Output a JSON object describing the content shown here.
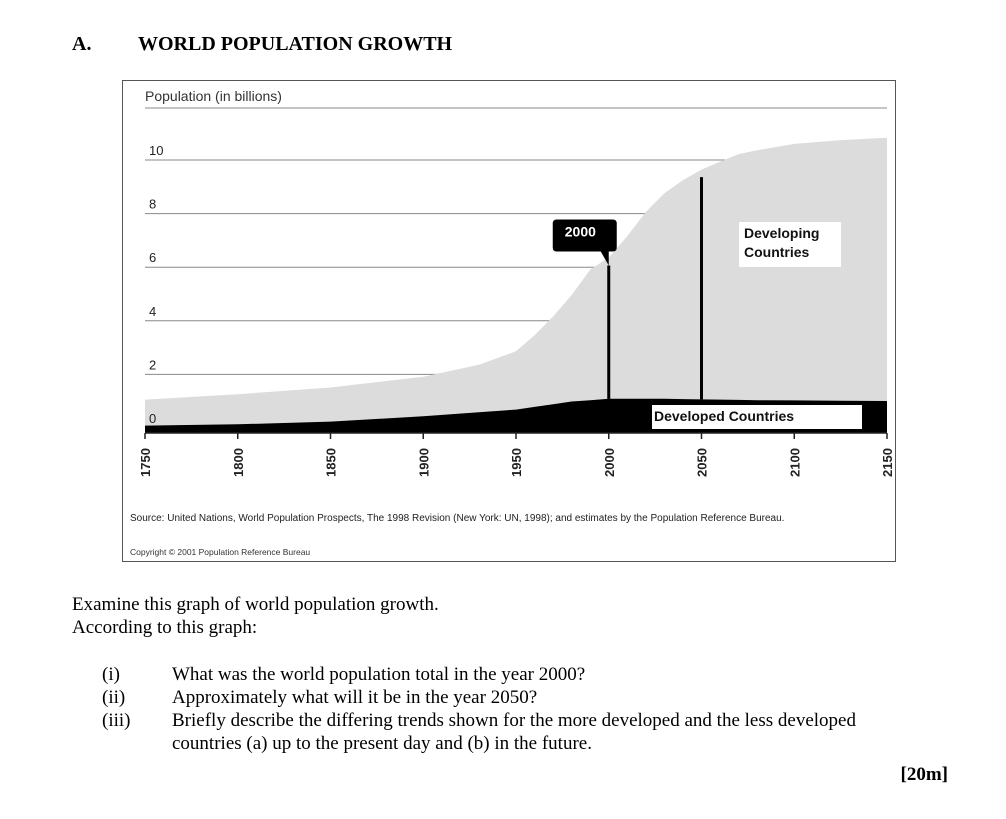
{
  "heading": {
    "letter": "A.",
    "title": "WORLD POPULATION GROWTH"
  },
  "chart_data": {
    "type": "area",
    "ylabel": "Population (in billions)",
    "ylim": [
      0,
      10
    ],
    "yticks": [
      0,
      2,
      4,
      6,
      8,
      10
    ],
    "xlim": [
      1750,
      2150
    ],
    "xticks": [
      1750,
      1800,
      1850,
      1900,
      1950,
      2000,
      2050,
      2100,
      2150
    ],
    "grid": true,
    "x": [
      1750,
      1800,
      1850,
      1900,
      1930,
      1950,
      1960,
      1970,
      1980,
      1990,
      2000,
      2010,
      2020,
      2030,
      2040,
      2050,
      2060,
      2070,
      2080,
      2100,
      2125,
      2150
    ],
    "series": [
      {
        "name": "Developed Countries",
        "values": [
          0.2,
          0.25,
          0.35,
          0.55,
          0.7,
          0.8,
          0.9,
          1.0,
          1.1,
          1.15,
          1.2,
          1.2,
          1.2,
          1.2,
          1.19,
          1.18,
          1.17,
          1.16,
          1.15,
          1.14,
          1.13,
          1.12
        ]
      },
      {
        "name": "Developing Countries",
        "values": [
          0.6,
          0.75,
          0.9,
          1.1,
          1.4,
          1.8,
          2.3,
          2.9,
          3.6,
          4.5,
          4.9,
          5.7,
          6.6,
          7.3,
          7.8,
          8.2,
          8.5,
          8.8,
          8.95,
          9.2,
          9.35,
          9.45
        ]
      }
    ],
    "total": [
      0.8,
      1.0,
      1.25,
      1.65,
      2.1,
      2.6,
      3.2,
      3.9,
      4.7,
      5.65,
      6.1,
      6.9,
      7.8,
      8.5,
      8.99,
      9.38,
      9.67,
      9.96,
      10.1,
      10.34,
      10.48,
      10.57
    ],
    "annotations": [
      {
        "label": "2000",
        "x": 2000,
        "y": 6.1
      },
      {
        "label": "",
        "x": 2050,
        "y": 9.4
      }
    ],
    "series_labels": {
      "developing": [
        "Developing",
        "Countries"
      ],
      "developed": "Developed Countries"
    },
    "source": "Source: United Nations, World Population Prospects, The 1998 Revision (New York: UN, 1998); and estimates by the Population Reference Bureau.",
    "copyright": "Copyright © 2001 Population Reference Bureau",
    "colors": {
      "developing": "#dcdcdc",
      "developed": "#000000",
      "grid": "#888888"
    }
  },
  "instructions": {
    "line1": "Examine this graph of world population growth.",
    "line2": "According to this graph:"
  },
  "questions": [
    {
      "num": "(i)",
      "text": "What was the world population total in the year 2000?"
    },
    {
      "num": "(ii)",
      "text": "Approximately what will it be in the year 2050?"
    },
    {
      "num": "(iii)",
      "text": "Briefly describe the differing trends shown for the more developed and the less developed countries (a) up to the present day and (b) in the future."
    }
  ],
  "marks": "[20m]"
}
